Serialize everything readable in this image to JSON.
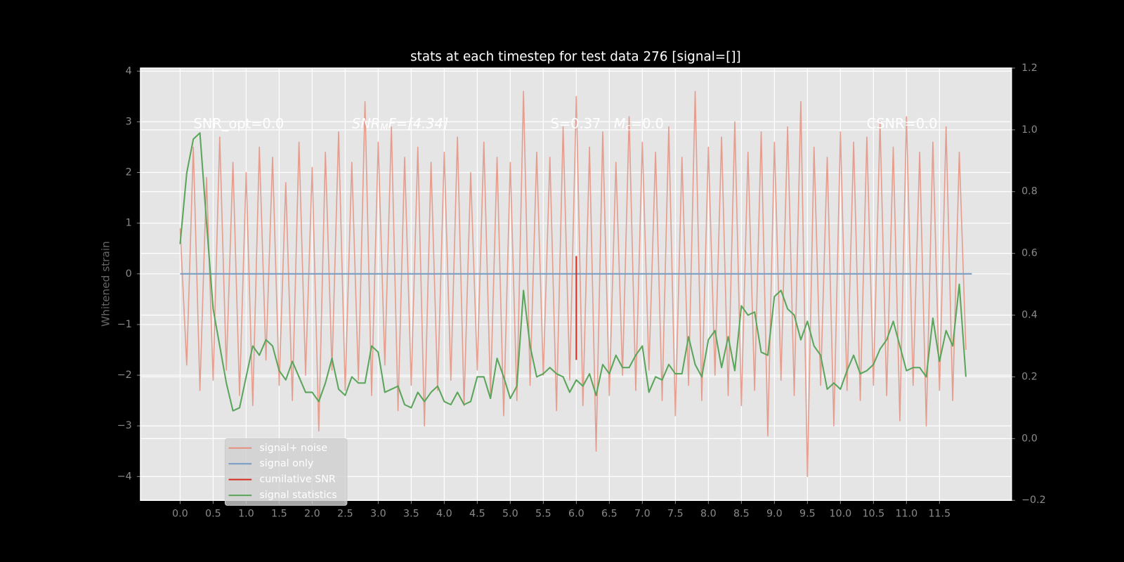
{
  "chart_data": {
    "type": "line",
    "title": "stats at each timestep for test data 276 [signal=[]]",
    "y_label": "Whitened strain",
    "annotations": [
      [
        {
          "text": "SNR_opt=0.0"
        }
      ],
      [
        {
          "text": "SNR",
          "italic": true
        },
        {
          "text": "M",
          "italic": true,
          "sub": true
        },
        {
          "text": "F=[4.34]",
          "italic": true
        }
      ],
      [
        {
          "text": "S=0.37   "
        },
        {
          "text": "M",
          "italic": true
        },
        {
          "text": "c",
          "sub": true
        },
        {
          "text": "=0.0"
        }
      ],
      [
        {
          "text": "CSNR=0.0"
        }
      ]
    ],
    "x": [
      0,
      0.1,
      0.2,
      0.3,
      0.4,
      0.5,
      0.6,
      0.7,
      0.8,
      0.9,
      1,
      1.1,
      1.2,
      1.3,
      1.4,
      1.5,
      1.6,
      1.7,
      1.8,
      1.9,
      2,
      2.1,
      2.2,
      2.3,
      2.4,
      2.5,
      2.6,
      2.7,
      2.8,
      2.9,
      3,
      3.1,
      3.2,
      3.3,
      3.4,
      3.5,
      3.6,
      3.7,
      3.8,
      3.9,
      4,
      4.1,
      4.2,
      4.3,
      4.4,
      4.5,
      4.6,
      4.7,
      4.8,
      4.9,
      5,
      5.1,
      5.2,
      5.3,
      5.4,
      5.5,
      5.6,
      5.7,
      5.8,
      5.9,
      6,
      6.1,
      6.2,
      6.3,
      6.4,
      6.5,
      6.6,
      6.7,
      6.8,
      6.9,
      7,
      7.1,
      7.2,
      7.3,
      7.4,
      7.5,
      7.6,
      7.7,
      7.8,
      7.9,
      8,
      8.1,
      8.2,
      8.3,
      8.4,
      8.5,
      8.6,
      8.7,
      8.8,
      8.9,
      9,
      9.1,
      9.2,
      9.3,
      9.4,
      9.5,
      9.6,
      9.7,
      9.8,
      9.9,
      10,
      10.1,
      10.2,
      10.3,
      10.4,
      10.5,
      10.6,
      10.7,
      10.8,
      10.9,
      11,
      11.1,
      11.2,
      11.3,
      11.4,
      11.5,
      11.6,
      11.7,
      11.8,
      11.9
    ],
    "series": [
      {
        "name": "signal+ noise",
        "color": "#e5907f",
        "values": [
          0.9,
          -1.8,
          2.5,
          -2.3,
          1.9,
          -2.1,
          2.7,
          -1.9,
          2.2,
          -2.4,
          2.0,
          -2.6,
          2.5,
          -1.7,
          2.3,
          -2.2,
          1.8,
          -2.5,
          2.6,
          -2.0,
          2.1,
          -3.1,
          2.4,
          -1.9,
          2.8,
          -2.3,
          2.2,
          -2.1,
          3.4,
          -2.4,
          2.6,
          -1.8,
          2.9,
          -2.7,
          2.3,
          -2.2,
          2.5,
          -3.0,
          2.2,
          -2.3,
          2.4,
          -2.1,
          2.7,
          -2.6,
          2.0,
          -1.9,
          2.6,
          -2.4,
          2.3,
          -2.8,
          2.2,
          -2.5,
          3.6,
          -2.2,
          2.4,
          -2.0,
          2.3,
          -2.7,
          2.9,
          -2.1,
          3.5,
          -2.6,
          2.5,
          -3.5,
          2.8,
          -2.4,
          2.2,
          -2.0,
          3.1,
          -2.3,
          2.6,
          -1.9,
          2.4,
          -2.5,
          2.9,
          -2.8,
          2.3,
          -2.2,
          3.6,
          -2.5,
          2.5,
          -2.0,
          2.7,
          -2.4,
          3.0,
          -2.6,
          2.4,
          -2.3,
          2.8,
          -3.2,
          2.6,
          -2.1,
          2.9,
          -2.4,
          3.4,
          -4.0,
          2.5,
          -2.2,
          2.3,
          -3.0,
          2.8,
          -2.3,
          2.6,
          -2.5,
          2.7,
          -2.2,
          3.0,
          -2.4,
          2.5,
          -2.9,
          3.1,
          -2.2,
          2.4,
          -3.0,
          2.6,
          -2.3,
          2.9,
          -2.5,
          2.4,
          -1.5
        ]
      },
      {
        "name": "signal only",
        "color": "#7b9ec4",
        "x": [
          0,
          11.99
        ],
        "values": [
          0,
          0
        ]
      },
      {
        "name": "cumilative SNR",
        "color": "#d62c1f",
        "x": [
          6.0,
          6.0
        ],
        "values": [
          -1.7,
          0.35
        ]
      },
      {
        "name": "signal statistics",
        "color": "#5aa55a",
        "axis": "y2",
        "values": [
          0.63,
          0.86,
          0.97,
          0.99,
          0.7,
          0.42,
          0.3,
          0.18,
          0.09,
          0.1,
          0.2,
          0.3,
          0.27,
          0.32,
          0.3,
          0.22,
          0.19,
          0.25,
          0.2,
          0.15,
          0.15,
          0.12,
          0.18,
          0.26,
          0.16,
          0.14,
          0.2,
          0.18,
          0.18,
          0.3,
          0.28,
          0.15,
          0.16,
          0.17,
          0.11,
          0.1,
          0.15,
          0.12,
          0.15,
          0.17,
          0.12,
          0.11,
          0.15,
          0.11,
          0.12,
          0.2,
          0.2,
          0.13,
          0.26,
          0.2,
          0.13,
          0.17,
          0.48,
          0.3,
          0.2,
          0.21,
          0.23,
          0.21,
          0.2,
          0.15,
          0.19,
          0.17,
          0.21,
          0.14,
          0.24,
          0.21,
          0.27,
          0.23,
          0.23,
          0.27,
          0.3,
          0.15,
          0.2,
          0.19,
          0.24,
          0.21,
          0.21,
          0.33,
          0.24,
          0.2,
          0.32,
          0.35,
          0.23,
          0.33,
          0.22,
          0.43,
          0.4,
          0.41,
          0.28,
          0.27,
          0.46,
          0.48,
          0.42,
          0.4,
          0.32,
          0.38,
          0.3,
          0.27,
          0.16,
          0.18,
          0.16,
          0.22,
          0.27,
          0.21,
          0.22,
          0.24,
          0.29,
          0.32,
          0.38,
          0.3,
          0.22,
          0.23,
          0.23,
          0.2,
          0.39,
          0.25,
          0.35,
          0.3,
          0.5,
          0.2
        ]
      }
    ],
    "xlim": [
      -0.6,
      12.59
    ],
    "ylim": [
      -4.47,
      4.06
    ],
    "y2lim": [
      -0.2,
      1.2
    ],
    "xticks": [
      {
        "value": 0,
        "label": "0.0"
      },
      0.5,
      {
        "value": 1,
        "label": "1.0"
      },
      1.5,
      {
        "value": 2,
        "label": "2.0"
      },
      2.5,
      {
        "value": 3,
        "label": "3.0"
      },
      3.5,
      {
        "value": 4,
        "label": "4.0"
      },
      4.5,
      {
        "value": 5,
        "label": "5.0"
      },
      5.5,
      {
        "value": 6,
        "label": "6.0"
      },
      6.5,
      {
        "value": 7,
        "label": "7.0"
      },
      7.5,
      {
        "value": 8,
        "label": "8.0"
      },
      8.5,
      {
        "value": 9,
        "label": "9.0"
      },
      9.5,
      {
        "value": 10,
        "label": "10.0"
      },
      10.5,
      {
        "value": 11,
        "label": "11.0"
      },
      11.5
    ],
    "yticks": [
      {
        "value": -4,
        "label": "−4"
      },
      {
        "value": -3,
        "label": "−3"
      },
      {
        "value": -2,
        "label": "−2"
      },
      {
        "value": -1,
        "label": "−1"
      },
      0,
      1,
      2,
      3,
      4
    ],
    "y2ticks": [
      {
        "value": -0.2,
        "label": "−0.2"
      },
      {
        "value": 0,
        "label": "0.0"
      },
      0.2,
      0.4,
      0.6,
      0.8,
      {
        "value": 1,
        "label": "1.0"
      },
      1.2
    ],
    "grid": true,
    "legend": "lower left"
  }
}
